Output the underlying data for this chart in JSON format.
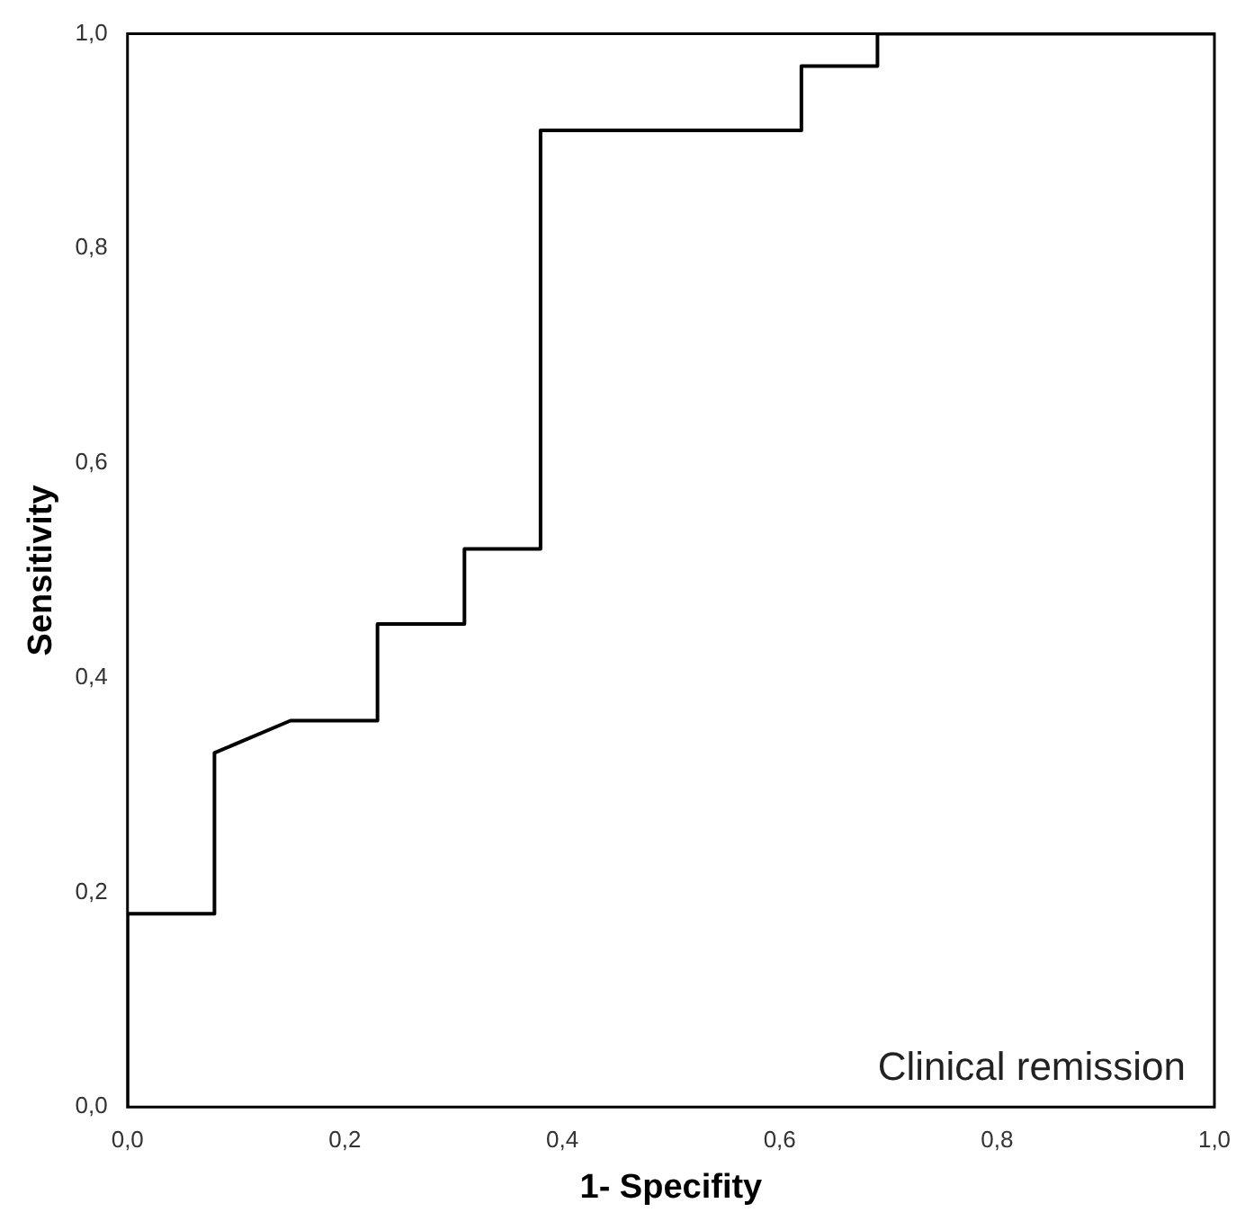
{
  "chart_data": {
    "type": "line",
    "xlabel": "1- Specifity",
    "ylabel": "Sensitivity",
    "annotations": [
      "Clinical remission"
    ],
    "xlim": [
      0,
      1
    ],
    "ylim": [
      0,
      1
    ],
    "xticks": [
      {
        "value": 0,
        "label": "0,0"
      },
      {
        "value": 0.2,
        "label": "0,2"
      },
      {
        "value": 0.4,
        "label": "0,4"
      },
      {
        "value": 0.6,
        "label": "0,6"
      },
      {
        "value": 0.8,
        "label": "0,8"
      },
      {
        "value": 1,
        "label": "1,0"
      }
    ],
    "yticks": [
      {
        "value": 0,
        "label": "0,0"
      },
      {
        "value": 0.2,
        "label": "0,2"
      },
      {
        "value": 0.4,
        "label": "0,4"
      },
      {
        "value": 0.6,
        "label": "0,6"
      },
      {
        "value": 0.8,
        "label": "0,8"
      },
      {
        "value": 1,
        "label": "1,0"
      }
    ],
    "grid": false,
    "legend": false,
    "marker": "none",
    "line_style": "solid",
    "series": [
      {
        "color": "#000000",
        "x": [
          0,
          0,
          0.08,
          0.08,
          0.15,
          0.23,
          0.23,
          0.31,
          0.31,
          0.38,
          0.38,
          0.62,
          0.62,
          0.69,
          0.69,
          1
        ],
        "values": [
          0,
          0.18,
          0.18,
          0.33,
          0.36,
          0.36,
          0.45,
          0.45,
          0.52,
          0.52,
          0.91,
          0.91,
          0.97,
          0.97,
          1,
          1
        ]
      }
    ]
  }
}
